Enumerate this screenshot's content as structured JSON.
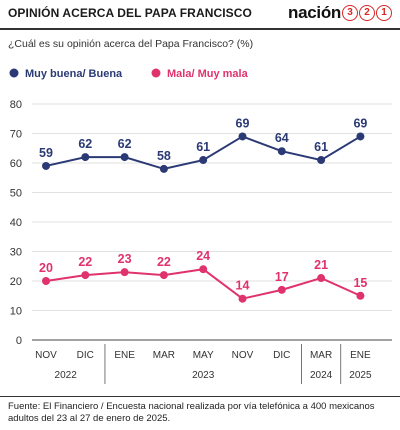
{
  "header": {
    "title": "OPINIÓN ACERCA DEL PAPA FRANCISCO",
    "brand_word": "nación",
    "brand_digits": [
      "3",
      "2",
      "1"
    ]
  },
  "question": "¿Cuál es su opinión acerca del Papa Francisco? (%)",
  "footer": {
    "source": "Fuente: El Financiero / Encuesta nacional realizada por vía telefónica a 400 mexicanos adultos del 23 al 27 de enero de 2025."
  },
  "chart_data": {
    "type": "line",
    "categories": [
      "NOV",
      "DIC",
      "ENE",
      "MAR",
      "MAY",
      "NOV",
      "DIC",
      "MAR",
      "ENE"
    ],
    "year_groups": [
      {
        "label": "2022",
        "span": [
          0,
          1
        ]
      },
      {
        "label": "2023",
        "span": [
          2,
          6
        ]
      },
      {
        "label": "2024",
        "span": [
          7,
          7
        ]
      },
      {
        "label": "2025",
        "span": [
          8,
          8
        ]
      }
    ],
    "series": [
      {
        "name": "Muy buena/ Buena",
        "color": "#2b3a75",
        "values": [
          59,
          62,
          62,
          58,
          61,
          69,
          64,
          61,
          69
        ]
      },
      {
        "name": "Mala/ Muy mala",
        "color": "#e0336e",
        "values": [
          20,
          22,
          23,
          22,
          24,
          14,
          17,
          21,
          15
        ]
      }
    ],
    "yticks": [
      0,
      10,
      20,
      30,
      40,
      50,
      60,
      70,
      80
    ],
    "ylim": [
      0,
      80
    ],
    "grid": true,
    "legend": "top-left"
  }
}
